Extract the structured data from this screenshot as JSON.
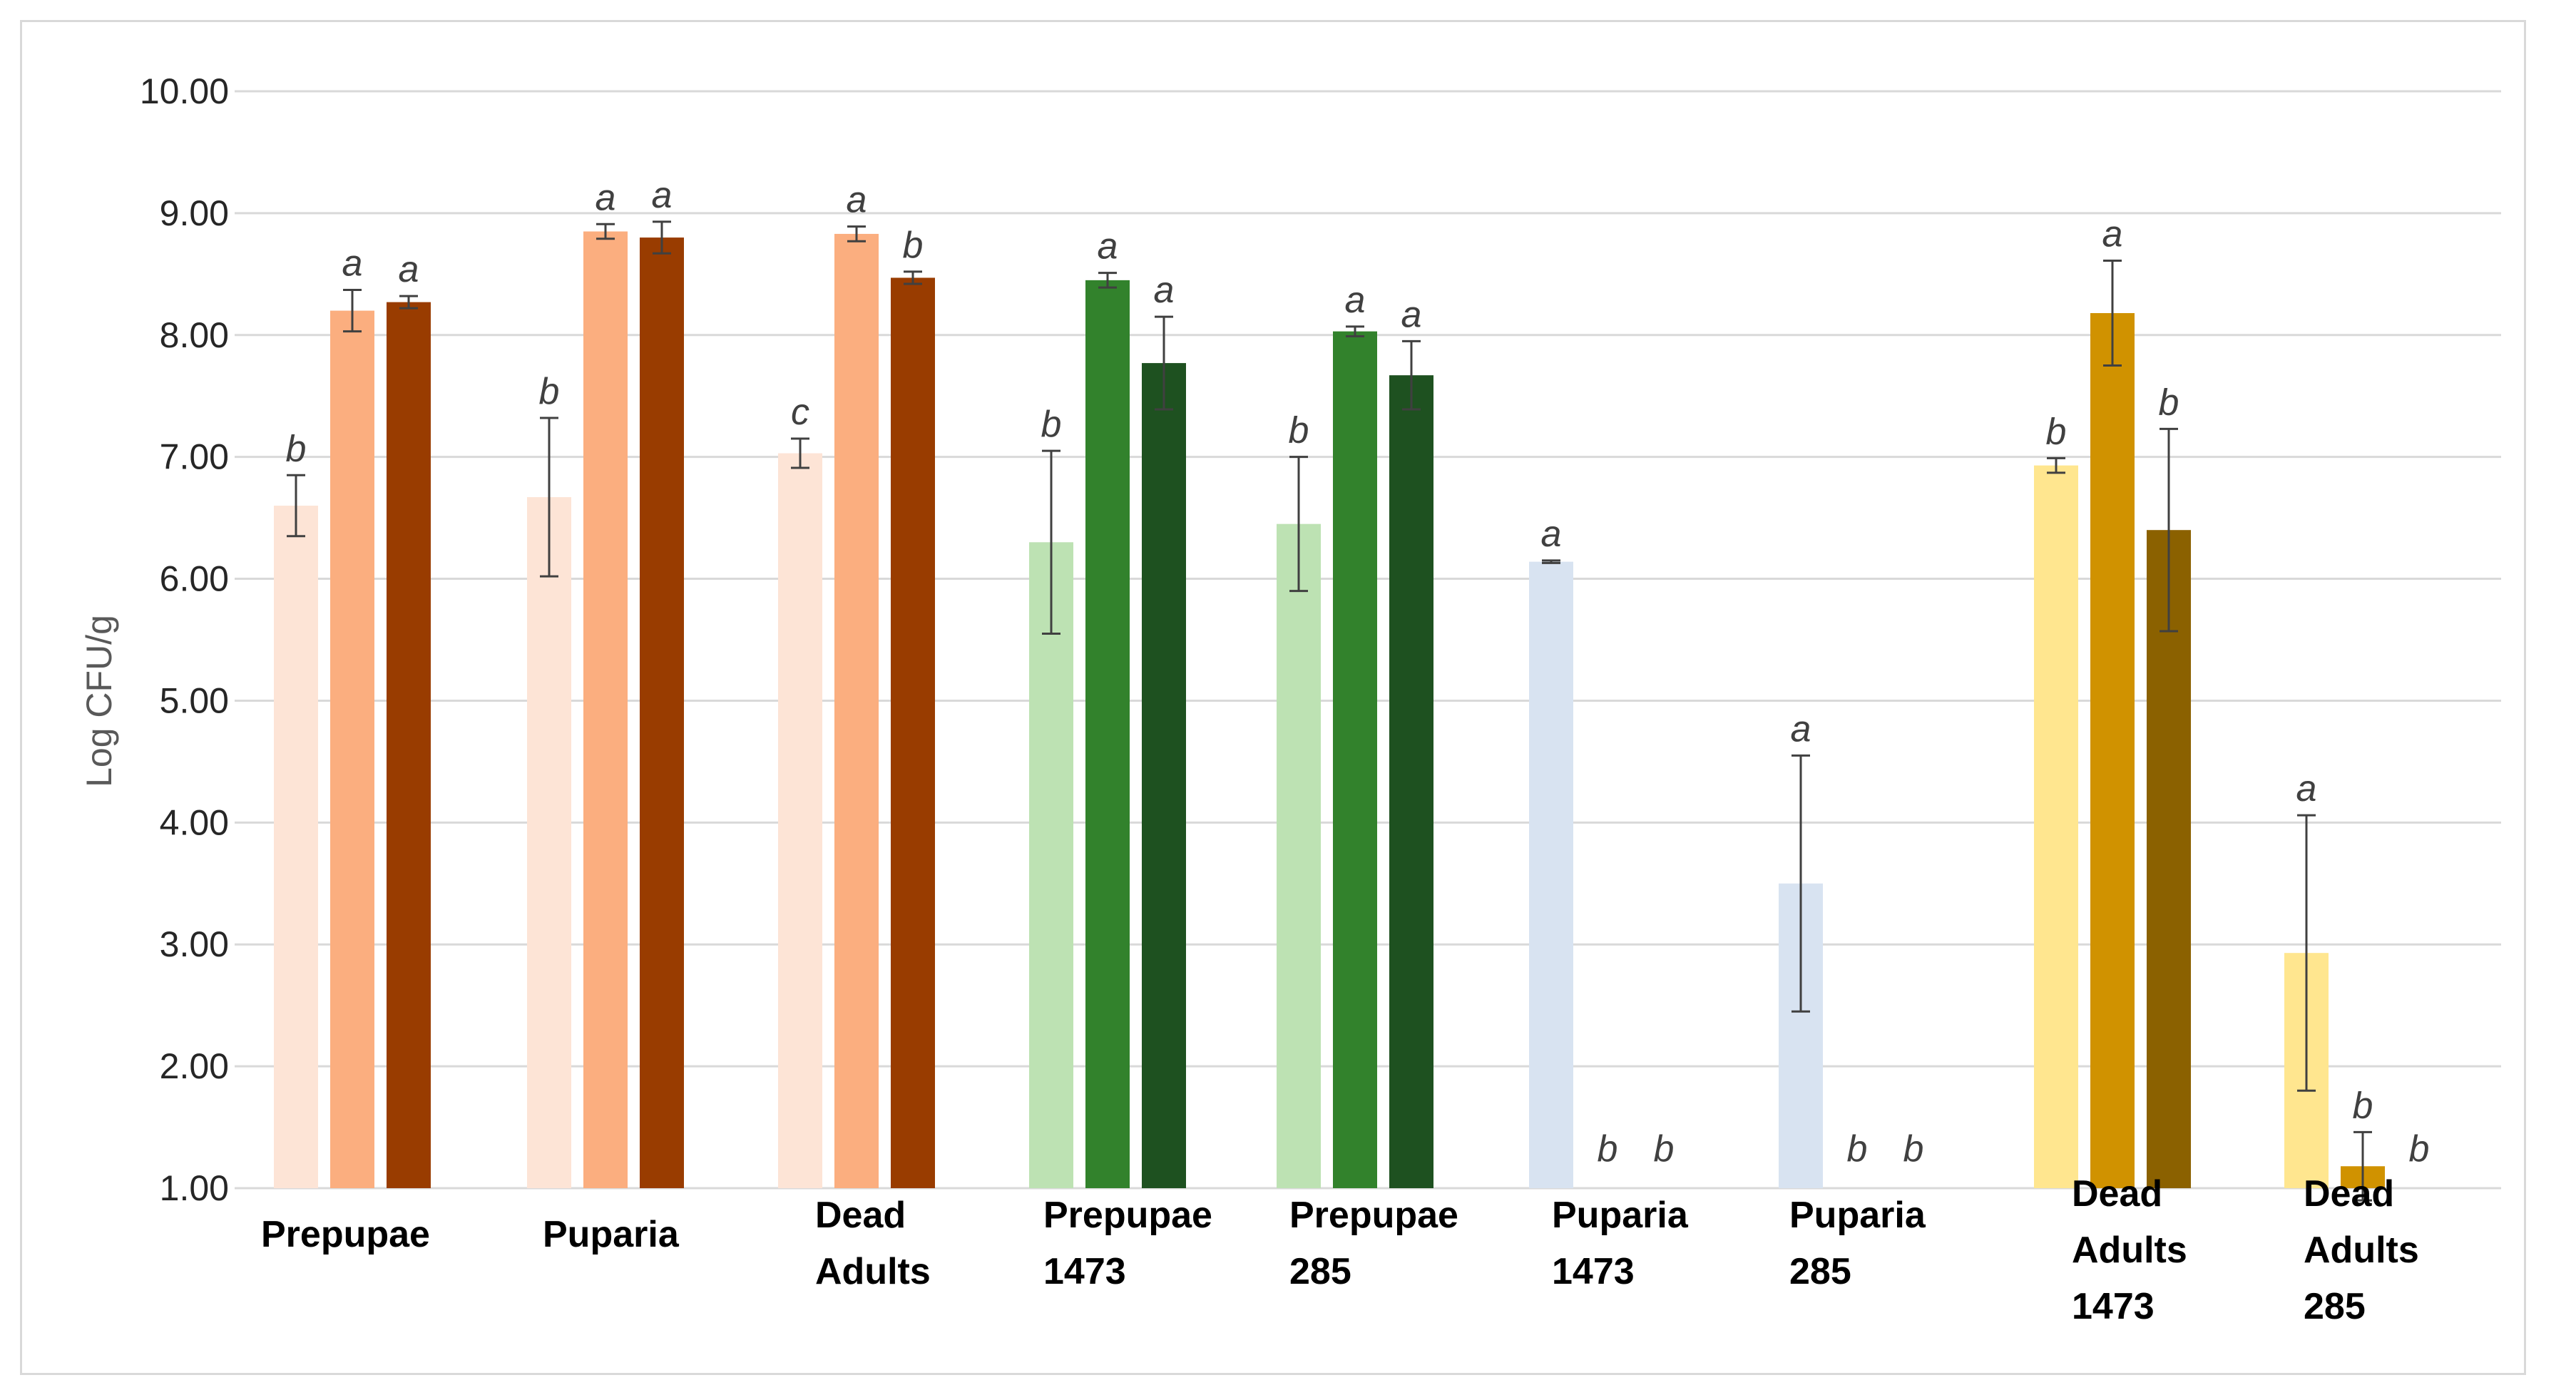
{
  "chart_data": {
    "type": "bar",
    "title": "",
    "xlabel": "",
    "ylabel": "Log CFU/g",
    "ylim": [
      1,
      10
    ],
    "yticks": [
      "1.00",
      "2.00",
      "3.00",
      "4.00",
      "5.00",
      "6.00",
      "7.00",
      "8.00",
      "9.00",
      "10.00"
    ],
    "grid": true,
    "legend": "none",
    "groups": [
      {
        "label": [
          "Prepupae"
        ],
        "bars": [
          {
            "value": 6.6,
            "error": 0.25,
            "letter": "b",
            "color": "#fde4d6"
          },
          {
            "value": 8.2,
            "error": 0.17,
            "letter": "a",
            "color": "#fbae7f"
          },
          {
            "value": 8.27,
            "error": 0.05,
            "letter": "a",
            "color": "#993c00"
          }
        ]
      },
      {
        "label": [
          "Puparia"
        ],
        "bars": [
          {
            "value": 6.67,
            "error": 0.65,
            "letter": "b",
            "color": "#fde4d6"
          },
          {
            "value": 8.85,
            "error": 0.06,
            "letter": "a",
            "color": "#fbae7f"
          },
          {
            "value": 8.8,
            "error": 0.13,
            "letter": "a",
            "color": "#993c00"
          }
        ]
      },
      {
        "label": [
          "Dead",
          "Adults"
        ],
        "bars": [
          {
            "value": 7.03,
            "error": 0.12,
            "letter": "c",
            "color": "#fde4d6"
          },
          {
            "value": 8.83,
            "error": 0.06,
            "letter": "a",
            "color": "#fbae7f"
          },
          {
            "value": 8.47,
            "error": 0.05,
            "letter": "b",
            "color": "#993c00"
          }
        ]
      },
      {
        "label": [
          "Prepupae",
          "1473"
        ],
        "bars": [
          {
            "value": 6.3,
            "error": 0.75,
            "letter": "b",
            "color": "#bde2b3"
          },
          {
            "value": 8.45,
            "error": 0.06,
            "letter": "a",
            "color": "#32822c"
          },
          {
            "value": 7.77,
            "error": 0.38,
            "letter": "a",
            "color": "#1e5120"
          }
        ]
      },
      {
        "label": [
          "Prepupae",
          "285"
        ],
        "bars": [
          {
            "value": 6.45,
            "error": 0.55,
            "letter": "b",
            "color": "#bde2b3"
          },
          {
            "value": 8.03,
            "error": 0.04,
            "letter": "a",
            "color": "#32822c"
          },
          {
            "value": 7.67,
            "error": 0.28,
            "letter": "a",
            "color": "#1e5120"
          }
        ]
      },
      {
        "label": [
          "Puparia",
          "1473"
        ],
        "bars": [
          {
            "value": 6.14,
            "error": 0.01,
            "letter": "a",
            "color": "#d8e3f1"
          },
          {
            "value": 1.0,
            "error": 0,
            "letter": "b",
            "color": "#d8e3f1"
          },
          {
            "value": 1.0,
            "error": 0,
            "letter": "b",
            "color": "#d8e3f1"
          }
        ]
      },
      {
        "label": [
          "Puparia",
          "285"
        ],
        "bars": [
          {
            "value": 3.5,
            "error": 1.05,
            "letter": "a",
            "color": "#d8e3f1"
          },
          {
            "value": 1.0,
            "error": 0,
            "letter": "b",
            "color": "#d8e3f1"
          },
          {
            "value": 1.0,
            "error": 0,
            "letter": "b",
            "color": "#d8e3f1"
          }
        ]
      },
      {
        "label": [
          "Dead",
          "Adults",
          "1473"
        ],
        "bars": [
          {
            "value": 6.93,
            "error": 0.06,
            "letter": "b",
            "color": "#ffe68f"
          },
          {
            "value": 8.18,
            "error": 0.43,
            "letter": "a",
            "color": "#d09200"
          },
          {
            "value": 6.4,
            "error": 0.83,
            "letter": "b",
            "color": "#8b6100"
          }
        ]
      },
      {
        "label": [
          "Dead",
          "Adults",
          "285"
        ],
        "bars": [
          {
            "value": 2.93,
            "error": 1.13,
            "letter": "a",
            "color": "#ffe68f"
          },
          {
            "value": 1.18,
            "error": 0.28,
            "letter": "b",
            "color": "#d09200"
          },
          {
            "value": 1.0,
            "error": 0,
            "letter": "b",
            "color": "#8b6100"
          }
        ]
      }
    ]
  }
}
